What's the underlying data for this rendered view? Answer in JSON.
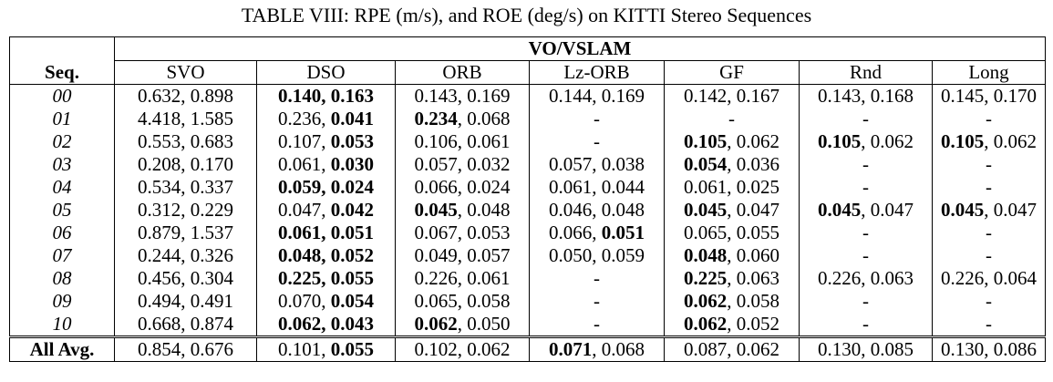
{
  "caption": "TABLE VIII: RPE (m/s), and ROE (deg/s) on KITTI Stereo Sequences",
  "group_header": "VO/VSLAM",
  "columns": [
    "Seq.",
    "SVO",
    "DSO",
    "ORB",
    "Lz-ORB",
    "GF",
    "Rnd",
    "Long"
  ],
  "rows": [
    {
      "seq": "00",
      "cells": [
        {
          "a": "0.632",
          "b": "0.898",
          "ba": false,
          "bb": false
        },
        {
          "a": "0.140",
          "b": "0.163",
          "ba": true,
          "bb": true
        },
        {
          "a": "0.143",
          "b": "0.169",
          "ba": false,
          "bb": false
        },
        {
          "a": "0.144",
          "b": "0.169",
          "ba": false,
          "bb": false
        },
        {
          "a": "0.142",
          "b": "0.167",
          "ba": false,
          "bb": false
        },
        {
          "a": "0.143",
          "b": "0.168",
          "ba": false,
          "bb": false
        },
        {
          "a": "0.145",
          "b": "0.170",
          "ba": false,
          "bb": false
        }
      ]
    },
    {
      "seq": "01",
      "cells": [
        {
          "a": "4.418",
          "b": "1.585",
          "ba": false,
          "bb": false
        },
        {
          "a": "0.236",
          "b": "0.041",
          "ba": false,
          "bb": true
        },
        {
          "a": "0.234",
          "b": "0.068",
          "ba": true,
          "bb": false
        },
        {
          "dash": "-"
        },
        {
          "dash": "-"
        },
        {
          "dash": "-"
        },
        {
          "dash": "-"
        }
      ]
    },
    {
      "seq": "02",
      "cells": [
        {
          "a": "0.553",
          "b": "0.683",
          "ba": false,
          "bb": false
        },
        {
          "a": "0.107",
          "b": "0.053",
          "ba": false,
          "bb": true
        },
        {
          "a": "0.106",
          "b": "0.061",
          "ba": false,
          "bb": false
        },
        {
          "dash": "-"
        },
        {
          "a": "0.105",
          "b": "0.062",
          "ba": true,
          "bb": false
        },
        {
          "a": "0.105",
          "b": "0.062",
          "ba": true,
          "bb": false
        },
        {
          "a": "0.105",
          "b": "0.062",
          "ba": true,
          "bb": false
        }
      ]
    },
    {
      "seq": "03",
      "cells": [
        {
          "a": "0.208",
          "b": "0.170",
          "ba": false,
          "bb": false
        },
        {
          "a": "0.061",
          "b": "0.030",
          "ba": false,
          "bb": true
        },
        {
          "a": "0.057",
          "b": "0.032",
          "ba": false,
          "bb": false
        },
        {
          "a": "0.057",
          "b": "0.038",
          "ba": false,
          "bb": false
        },
        {
          "a": "0.054",
          "b": "0.036",
          "ba": true,
          "bb": false
        },
        {
          "dash": "-"
        },
        {
          "dash": "-"
        }
      ]
    },
    {
      "seq": "04",
      "cells": [
        {
          "a": "0.534",
          "b": "0.337",
          "ba": false,
          "bb": false
        },
        {
          "a": "0.059",
          "b": "0.024",
          "ba": true,
          "bb": true
        },
        {
          "a": "0.066",
          "b": "0.024",
          "ba": false,
          "bb": false
        },
        {
          "a": "0.061",
          "b": "0.044",
          "ba": false,
          "bb": false
        },
        {
          "a": "0.061",
          "b": "0.025",
          "ba": false,
          "bb": false
        },
        {
          "dash": "-"
        },
        {
          "dash": "-"
        }
      ]
    },
    {
      "seq": "05",
      "cells": [
        {
          "a": "0.312",
          "b": "0.229",
          "ba": false,
          "bb": false
        },
        {
          "a": "0.047",
          "b": "0.042",
          "ba": false,
          "bb": true
        },
        {
          "a": "0.045",
          "b": "0.048",
          "ba": true,
          "bb": false
        },
        {
          "a": "0.046",
          "b": "0.048",
          "ba": false,
          "bb": false
        },
        {
          "a": "0.045",
          "b": "0.047",
          "ba": true,
          "bb": false
        },
        {
          "a": "0.045",
          "b": "0.047",
          "ba": true,
          "bb": false
        },
        {
          "a": "0.045",
          "b": "0.047",
          "ba": true,
          "bb": false
        }
      ]
    },
    {
      "seq": "06",
      "cells": [
        {
          "a": "0.879",
          "b": "1.537",
          "ba": false,
          "bb": false
        },
        {
          "a": "0.061",
          "b": "0.051",
          "ba": true,
          "bb": true
        },
        {
          "a": "0.067",
          "b": "0.053",
          "ba": false,
          "bb": false
        },
        {
          "a": "0.066",
          "b": "0.051",
          "ba": false,
          "bb": true
        },
        {
          "a": "0.065",
          "b": "0.055",
          "ba": false,
          "bb": false
        },
        {
          "dash": "-"
        },
        {
          "dash": "-"
        }
      ]
    },
    {
      "seq": "07",
      "cells": [
        {
          "a": "0.244",
          "b": "0.326",
          "ba": false,
          "bb": false
        },
        {
          "a": "0.048",
          "b": "0.052",
          "ba": true,
          "bb": true
        },
        {
          "a": "0.049",
          "b": "0.057",
          "ba": false,
          "bb": false
        },
        {
          "a": "0.050",
          "b": "0.059",
          "ba": false,
          "bb": false
        },
        {
          "a": "0.048",
          "b": "0.060",
          "ba": true,
          "bb": false
        },
        {
          "dash": "-"
        },
        {
          "dash": "-"
        }
      ]
    },
    {
      "seq": "08",
      "cells": [
        {
          "a": "0.456",
          "b": "0.304",
          "ba": false,
          "bb": false
        },
        {
          "a": "0.225",
          "b": "0.055",
          "ba": true,
          "bb": true
        },
        {
          "a": "0.226",
          "b": "0.061",
          "ba": false,
          "bb": false
        },
        {
          "dash": "-"
        },
        {
          "a": "0.225",
          "b": "0.063",
          "ba": true,
          "bb": false
        },
        {
          "a": "0.226",
          "b": "0.063",
          "ba": false,
          "bb": false
        },
        {
          "a": "0.226",
          "b": "0.064",
          "ba": false,
          "bb": false
        }
      ]
    },
    {
      "seq": "09",
      "cells": [
        {
          "a": "0.494",
          "b": "0.491",
          "ba": false,
          "bb": false
        },
        {
          "a": "0.070",
          "b": "0.054",
          "ba": false,
          "bb": true
        },
        {
          "a": "0.065",
          "b": "0.058",
          "ba": false,
          "bb": false
        },
        {
          "dash": "-"
        },
        {
          "a": "0.062",
          "b": "0.058",
          "ba": true,
          "bb": false
        },
        {
          "dash": "-"
        },
        {
          "dash": "-"
        }
      ]
    },
    {
      "seq": "10",
      "cells": [
        {
          "a": "0.668",
          "b": "0.874",
          "ba": false,
          "bb": false
        },
        {
          "a": "0.062",
          "b": "0.043",
          "ba": true,
          "bb": true
        },
        {
          "a": "0.062",
          "b": "0.050",
          "ba": true,
          "bb": false
        },
        {
          "dash": "-"
        },
        {
          "a": "0.062",
          "b": "0.052",
          "ba": true,
          "bb": false
        },
        {
          "dash": "-"
        },
        {
          "dash": "-"
        }
      ]
    }
  ],
  "avg_row": {
    "label": "All Avg.",
    "cells": [
      {
        "a": "0.854",
        "b": "0.676",
        "ba": false,
        "bb": false
      },
      {
        "a": "0.101",
        "b": "0.055",
        "ba": false,
        "bb": true
      },
      {
        "a": "0.102",
        "b": "0.062",
        "ba": false,
        "bb": false
      },
      {
        "a": "0.071",
        "b": "0.068",
        "ba": true,
        "bb": false
      },
      {
        "a": "0.087",
        "b": "0.062",
        "ba": false,
        "bb": false
      },
      {
        "a": "0.130",
        "b": "0.085",
        "ba": false,
        "bb": false
      },
      {
        "a": "0.130",
        "b": "0.086",
        "ba": false,
        "bb": false
      }
    ]
  }
}
